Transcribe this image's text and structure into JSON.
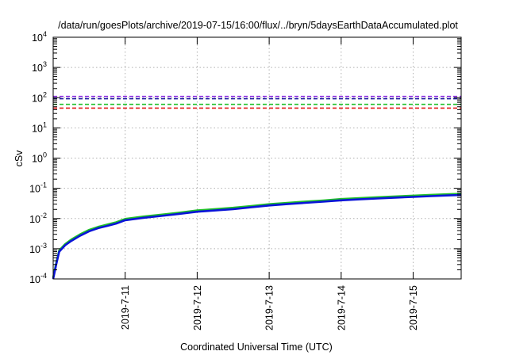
{
  "chart_data": {
    "type": "line",
    "title": "/data/run/goesPlots/archive/2019-07-15/16:00/flux/../bryn/5daysEarthDataAccumulated.plot",
    "xlabel": "Coordinated Universal Time (UTC)",
    "ylabel": "cSv",
    "y_scale": "log",
    "ylim": [
      0.0001,
      10000
    ],
    "y_ticks": [
      {
        "base": "10",
        "exp": "-4",
        "value": 0.0001
      },
      {
        "base": "10",
        "exp": "-3",
        "value": 0.001
      },
      {
        "base": "10",
        "exp": "-2",
        "value": 0.01
      },
      {
        "base": "10",
        "exp": "-1",
        "value": 0.1
      },
      {
        "base": "10",
        "exp": "0",
        "value": 1
      },
      {
        "base": "10",
        "exp": "1",
        "value": 10
      },
      {
        "base": "10",
        "exp": "2",
        "value": 100
      },
      {
        "base": "10",
        "exp": "3",
        "value": 1000
      },
      {
        "base": "10",
        "exp": "4",
        "value": 10000
      }
    ],
    "xlim": [
      "2019-07-10 00:00",
      "2019-07-15 16:00"
    ],
    "x_ticks": [
      "2019-7-11",
      "2019-7-12",
      "2019-7-13",
      "2019-7-14",
      "2019-7-15"
    ],
    "grid": true,
    "series": [
      {
        "style": "solid",
        "color": "#0a14d8",
        "x": [
          "2019-07-10 00:00",
          "2019-07-10 01:00",
          "2019-07-10 02:00",
          "2019-07-10 04:00",
          "2019-07-10 06:00",
          "2019-07-10 09:00",
          "2019-07-10 12:00",
          "2019-07-10 15:00",
          "2019-07-10 18:00",
          "2019-07-10 21:00",
          "2019-07-11 00:00",
          "2019-07-11 06:00",
          "2019-07-11 12:00",
          "2019-07-11 18:00",
          "2019-07-12 00:00",
          "2019-07-12 06:00",
          "2019-07-12 12:00",
          "2019-07-12 18:00",
          "2019-07-13 00:00",
          "2019-07-13 06:00",
          "2019-07-13 12:00",
          "2019-07-13 18:00",
          "2019-07-14 00:00",
          "2019-07-14 06:00",
          "2019-07-14 12:00",
          "2019-07-14 18:00",
          "2019-07-15 00:00",
          "2019-07-15 06:00",
          "2019-07-15 12:00",
          "2019-07-15 16:00"
        ],
        "y": [
          0.0001,
          0.0003,
          0.0008,
          0.0013,
          0.0018,
          0.0027,
          0.0038,
          0.0048,
          0.0057,
          0.0068,
          0.0088,
          0.0105,
          0.0122,
          0.0142,
          0.0168,
          0.0185,
          0.0205,
          0.0235,
          0.027,
          0.03,
          0.033,
          0.036,
          0.04,
          0.043,
          0.046,
          0.049,
          0.052,
          0.055,
          0.058,
          0.06
        ]
      },
      {
        "style": "solid",
        "color": "#1fbf2a",
        "x": [
          "2019-07-10 00:00",
          "2019-07-10 01:00",
          "2019-07-10 02:00",
          "2019-07-10 04:00",
          "2019-07-10 06:00",
          "2019-07-10 09:00",
          "2019-07-10 12:00",
          "2019-07-10 15:00",
          "2019-07-10 18:00",
          "2019-07-10 21:00",
          "2019-07-11 00:00",
          "2019-07-11 06:00",
          "2019-07-11 12:00",
          "2019-07-11 18:00",
          "2019-07-12 00:00",
          "2019-07-12 06:00",
          "2019-07-12 12:00",
          "2019-07-12 18:00",
          "2019-07-13 00:00",
          "2019-07-13 06:00",
          "2019-07-13 12:00",
          "2019-07-13 18:00",
          "2019-07-14 00:00",
          "2019-07-14 06:00",
          "2019-07-14 12:00",
          "2019-07-14 18:00",
          "2019-07-15 00:00",
          "2019-07-15 06:00",
          "2019-07-15 12:00",
          "2019-07-15 16:00"
        ],
        "y": [
          0.00011,
          0.00033,
          0.00088,
          0.00143,
          0.002,
          0.003,
          0.0042,
          0.0053,
          0.0063,
          0.0075,
          0.0097,
          0.0116,
          0.0134,
          0.0156,
          0.0185,
          0.0204,
          0.0226,
          0.0259,
          0.0297,
          0.033,
          0.0363,
          0.0396,
          0.044,
          0.0473,
          0.0506,
          0.0539,
          0.0572,
          0.0605,
          0.0638,
          0.066
        ]
      }
    ],
    "threshold_lines": [
      {
        "value": 110,
        "color": "#8a2be2",
        "style": "dashed"
      },
      {
        "value": 92,
        "color": "#1a1a9e",
        "style": "dashed"
      },
      {
        "value": 60,
        "color": "#1fbf2a",
        "style": "dashed"
      },
      {
        "value": 45,
        "color": "#e41a1a",
        "style": "dashed"
      }
    ]
  }
}
